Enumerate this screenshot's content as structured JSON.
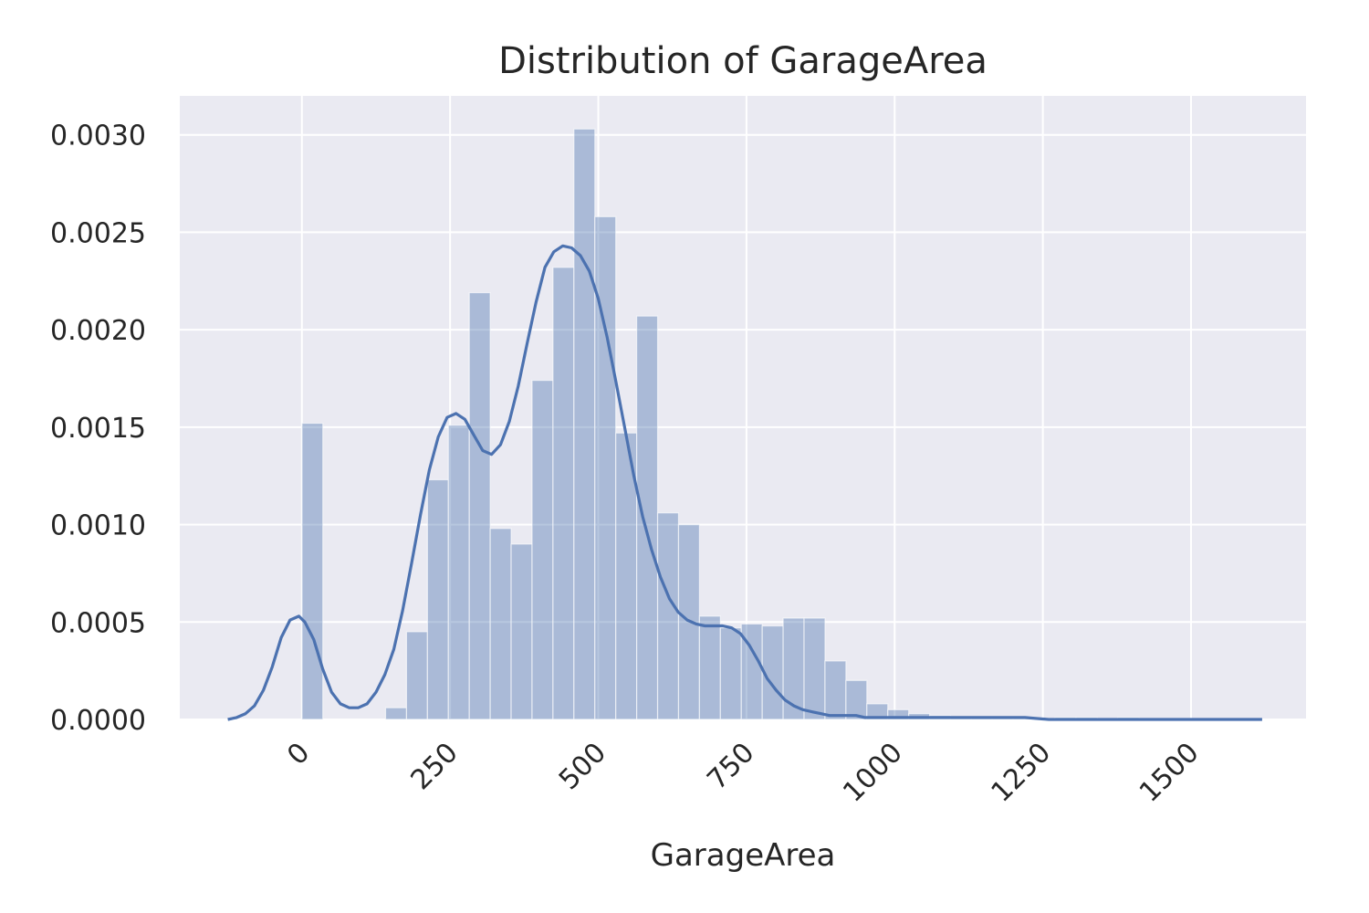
{
  "chart_data": {
    "type": "bar",
    "title": "Distribution of GarageArea",
    "xlabel": "GarageArea",
    "ylabel": "",
    "xlim": [
      -206,
      1694
    ],
    "ylim": [
      0,
      0.0032
    ],
    "grid": true,
    "xticks": [
      0,
      250,
      500,
      750,
      1000,
      1250,
      1500
    ],
    "xtick_labels": [
      "0",
      "250",
      "500",
      "750",
      "1000",
      "1250",
      "1500"
    ],
    "yticks": [
      0,
      0.0005,
      0.001,
      0.0015,
      0.002,
      0.0025,
      0.003
    ],
    "ytick_labels": [
      "0.0000",
      "0.0005",
      "0.0010",
      "0.0015",
      "0.0020",
      "0.0025",
      "0.0030"
    ],
    "histogram": {
      "bin_edges": [
        0,
        35.3,
        70.6,
        105.9,
        141.2,
        176.5,
        211.8,
        247.1,
        282.4,
        317.7,
        353.0,
        388.3,
        423.6,
        458.9,
        494.2,
        529.5,
        564.8,
        600.1,
        635.4,
        670.7,
        706.0,
        741.3,
        776.6,
        811.9,
        847.2,
        882.5,
        917.8,
        953.1,
        988.4,
        1023.7,
        1059.0,
        1094.3,
        1129.6,
        1164.9,
        1200.2,
        1235.5,
        1270.8,
        1306.1,
        1341.4,
        1376.7,
        1412.0
      ],
      "values": [
        0.00152,
        0,
        0,
        0,
        6e-05,
        0.00045,
        0.00123,
        0.00151,
        0.00219,
        0.00098,
        0.0009,
        0.00174,
        0.00232,
        0.00303,
        0.00258,
        0.00147,
        0.00207,
        0.00106,
        0.001,
        0.00053,
        0.00047,
        0.00049,
        0.00048,
        0.00052,
        0.00052,
        0.0003,
        0.0002,
        8e-05,
        5e-05,
        3e-05,
        2e-05,
        1e-05,
        1e-05,
        1e-05,
        1e-05,
        0,
        1e-05,
        1e-05,
        0,
        1e-05
      ]
    },
    "kde": {
      "x": [
        -125,
        -110,
        -95,
        -80,
        -65,
        -50,
        -35,
        -20,
        -5,
        5,
        20,
        35,
        50,
        65,
        80,
        95,
        110,
        125,
        140,
        155,
        170,
        185,
        200,
        215,
        230,
        245,
        260,
        275,
        290,
        305,
        320,
        335,
        350,
        365,
        380,
        395,
        410,
        425,
        440,
        455,
        470,
        485,
        500,
        515,
        530,
        545,
        560,
        575,
        590,
        605,
        620,
        635,
        650,
        665,
        680,
        695,
        710,
        725,
        740,
        755,
        770,
        785,
        800,
        815,
        830,
        845,
        860,
        875,
        890,
        905,
        920,
        935,
        950,
        965,
        980,
        995,
        1010,
        1040,
        1070,
        1100,
        1130,
        1160,
        1190,
        1220,
        1260,
        1300,
        1340,
        1380,
        1420,
        1460,
        1500,
        1540,
        1580,
        1620
      ],
      "y": [
        0,
        1e-05,
        3e-05,
        7e-05,
        0.00015,
        0.00027,
        0.00042,
        0.00051,
        0.00053,
        0.0005,
        0.00041,
        0.00026,
        0.00014,
        8e-05,
        6e-05,
        6e-05,
        8e-05,
        0.00014,
        0.00023,
        0.00036,
        0.00056,
        0.0008,
        0.00105,
        0.00128,
        0.00145,
        0.00155,
        0.00157,
        0.00154,
        0.00146,
        0.00138,
        0.00136,
        0.00141,
        0.00153,
        0.00171,
        0.00193,
        0.00214,
        0.00232,
        0.0024,
        0.00243,
        0.00242,
        0.00238,
        0.0023,
        0.00216,
        0.00196,
        0.00173,
        0.00149,
        0.00125,
        0.00104,
        0.00087,
        0.00073,
        0.00062,
        0.00055,
        0.00051,
        0.00049,
        0.00048,
        0.00048,
        0.00048,
        0.00047,
        0.00044,
        0.00038,
        0.0003,
        0.00021,
        0.00015,
        0.0001,
        7e-05,
        5e-05,
        4e-05,
        3e-05,
        2e-05,
        2e-05,
        2e-05,
        2e-05,
        1e-05,
        1e-05,
        1e-05,
        1e-05,
        1e-05,
        1e-05,
        1e-05,
        1e-05,
        1e-05,
        1e-05,
        1e-05,
        1e-05,
        0,
        0,
        0,
        0,
        0,
        0,
        0,
        0,
        0,
        0
      ]
    },
    "colors": {
      "background": "#eaeaf2",
      "bar": "#4c72b0",
      "line": "#4c72b0",
      "grid": "#ffffff"
    }
  }
}
